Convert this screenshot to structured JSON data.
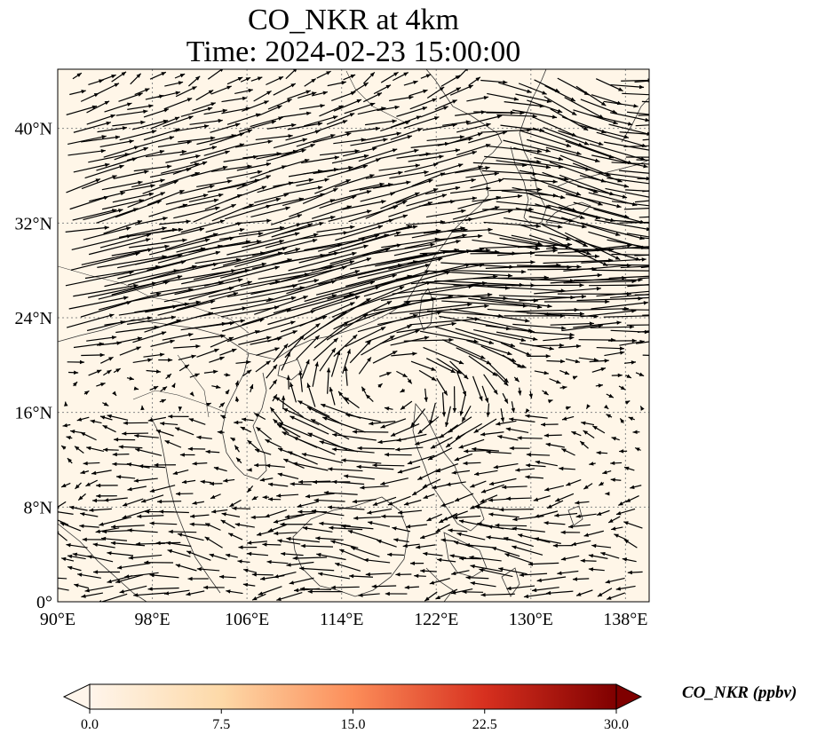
{
  "title": {
    "line1": "CO_NKR at 4km",
    "line2": "Time: 2024-02-23 15:00:00"
  },
  "map": {
    "projection": "PlateCarree",
    "lon_range": [
      90,
      140
    ],
    "lat_range": [
      0,
      45
    ],
    "lon_ticks": [
      "90°E",
      "98°E",
      "106°E",
      "114°E",
      "122°E",
      "130°E",
      "138°E"
    ],
    "lon_tick_values": [
      90,
      98,
      106,
      114,
      122,
      130,
      138
    ],
    "lat_ticks": [
      "0°",
      "8°N",
      "16°N",
      "24°N",
      "32°N",
      "40°N"
    ],
    "lat_tick_values": [
      0,
      8,
      16,
      24,
      32,
      40
    ],
    "gridlines": "dotted",
    "background_fill_color": "#fff6e8",
    "coastline_color": "#333333",
    "vector_color": "#000000"
  },
  "colorbar": {
    "label": "CO_NKR (ppbv)",
    "ticks": [
      "0.0",
      "7.5",
      "15.0",
      "22.5",
      "30.0"
    ],
    "min": 0,
    "max": 30,
    "extend": "both",
    "colormap": [
      "#fff5eb",
      "#fdd9a8",
      "#fc8d59",
      "#d7301f",
      "#7f0000"
    ]
  }
}
